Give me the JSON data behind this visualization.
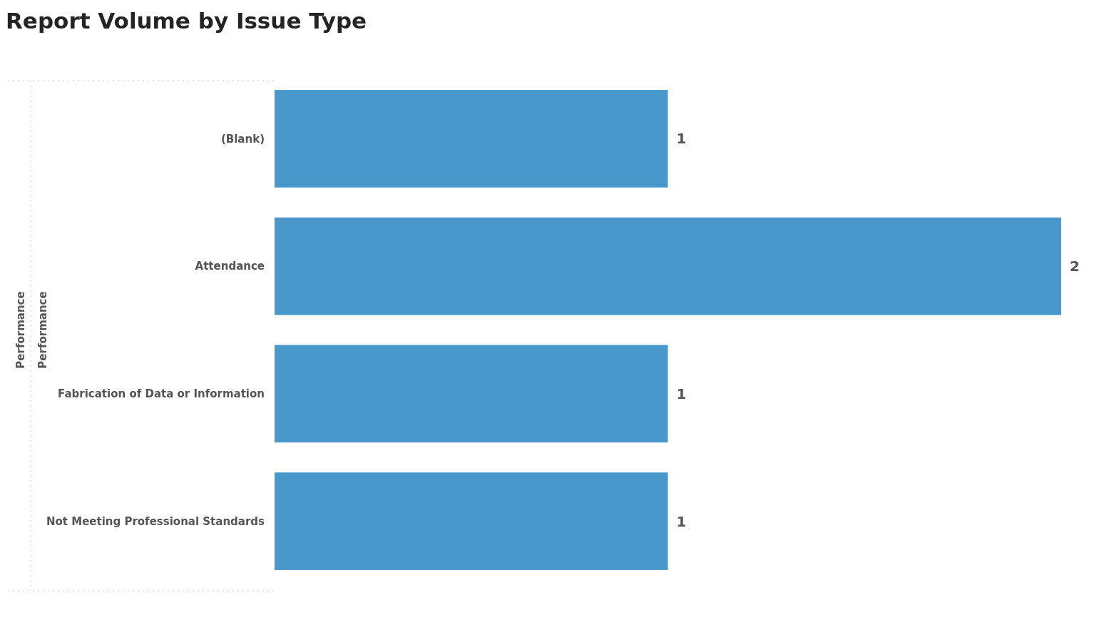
{
  "chart_data": {
    "type": "bar",
    "orientation": "horizontal",
    "title": "Report Volume by Issue Type",
    "categories": [
      "(Blank)",
      "Attendance",
      "Fabrication of Data or Information",
      "Not Meeting Professional Standards"
    ],
    "values": [
      1,
      2,
      1,
      1
    ],
    "color": "#4898cb",
    "data_labels": true,
    "annotations": [
      "Performance",
      "Performance"
    ]
  }
}
